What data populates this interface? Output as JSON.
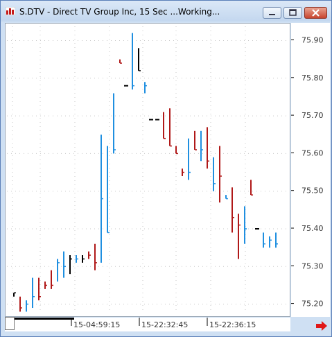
{
  "window": {
    "title": "S.DTV - Direct TV Group Inc, 15 Sec ...Working...",
    "icon": "chart-app-icon",
    "buttons": [
      "minimize-icon",
      "restore-icon",
      "close-icon"
    ]
  },
  "colors": {
    "up": "#1f8fe0",
    "down": "#b01818",
    "neutral": "#000000",
    "grid": "#c8c8c8"
  },
  "chart_data": {
    "type": "bar",
    "style": "ohlc",
    "ylim": [
      75.15,
      75.95
    ],
    "y_ticks": [
      "75.90",
      "75.80",
      "75.70",
      "75.60",
      "75.50",
      "75.40",
      "75.30",
      "75.20"
    ],
    "x_labels": [
      "15-04:59:15",
      "15-22:32:45",
      "15-22:36:15"
    ],
    "grid": "dotted",
    "bars": [
      {
        "dir": "neutral",
        "high": 75.23,
        "low": 75.22,
        "close": 75.23
      },
      {
        "dir": "down",
        "high": 75.22,
        "low": 75.18,
        "close": 75.19
      },
      {
        "dir": "up",
        "high": 75.21,
        "low": 75.18,
        "close": 75.2
      },
      {
        "dir": "up",
        "high": 75.27,
        "low": 75.19,
        "close": 75.22
      },
      {
        "dir": "down",
        "high": 75.27,
        "low": 75.21,
        "close": 75.22
      },
      {
        "dir": "down",
        "high": 75.26,
        "low": 75.24,
        "close": 75.25
      },
      {
        "dir": "down",
        "high": 75.29,
        "low": 75.24,
        "close": 75.25
      },
      {
        "dir": "up",
        "high": 75.32,
        "low": 75.26,
        "close": 75.31
      },
      {
        "dir": "up",
        "high": 75.34,
        "low": 75.27,
        "close": 75.3
      },
      {
        "dir": "neutral",
        "high": 75.33,
        "low": 75.28,
        "close": 75.32
      },
      {
        "dir": "up",
        "high": 75.33,
        "low": 75.31,
        "close": 75.32
      },
      {
        "dir": "neutral",
        "high": 75.33,
        "low": 75.31,
        "close": 75.32
      },
      {
        "dir": "down",
        "high": 75.34,
        "low": 75.32,
        "close": 75.33
      },
      {
        "dir": "down",
        "high": 75.36,
        "low": 75.29,
        "close": 75.31
      },
      {
        "dir": "up",
        "high": 75.65,
        "low": 75.31,
        "close": 75.48
      },
      {
        "dir": "up",
        "high": 75.62,
        "low": 75.39,
        "close": 75.39
      },
      {
        "dir": "up",
        "high": 75.76,
        "low": 75.6,
        "close": 75.61
      },
      {
        "dir": "down",
        "high": 75.85,
        "low": 75.84,
        "close": 75.84
      },
      {
        "dir": "neutral",
        "high": 75.78,
        "low": 75.78,
        "close": 75.78
      },
      {
        "dir": "up",
        "high": 75.92,
        "low": 75.77,
        "close": 75.78
      },
      {
        "dir": "neutral",
        "high": 75.88,
        "low": 75.82,
        "close": 75.82
      },
      {
        "dir": "up",
        "high": 75.79,
        "low": 75.76,
        "close": 75.78
      },
      {
        "dir": "neutral",
        "high": 75.69,
        "low": 75.69,
        "close": 75.69
      },
      {
        "dir": "neutral",
        "high": 75.69,
        "low": 75.69,
        "close": 75.69
      },
      {
        "dir": "down",
        "high": 75.71,
        "low": 75.64,
        "close": 75.64
      },
      {
        "dir": "down",
        "high": 75.72,
        "low": 75.62,
        "close": 75.62
      },
      {
        "dir": "down",
        "high": 75.62,
        "low": 75.6,
        "close": 75.6
      },
      {
        "dir": "down",
        "high": 75.56,
        "low": 75.54,
        "close": 75.55
      },
      {
        "dir": "up",
        "high": 75.64,
        "low": 75.53,
        "close": 75.55
      },
      {
        "dir": "down",
        "high": 75.66,
        "low": 75.61,
        "close": 75.61
      },
      {
        "dir": "up",
        "high": 75.66,
        "low": 75.58,
        "close": 75.61
      },
      {
        "dir": "down",
        "high": 75.67,
        "low": 75.56,
        "close": 75.58
      },
      {
        "dir": "up",
        "high": 75.59,
        "low": 75.5,
        "close": 75.52
      },
      {
        "dir": "down",
        "high": 75.62,
        "low": 75.47,
        "close": 75.54
      },
      {
        "dir": "up",
        "high": 75.49,
        "low": 75.48,
        "close": 75.48
      },
      {
        "dir": "down",
        "high": 75.51,
        "low": 75.39,
        "close": 75.43
      },
      {
        "dir": "down",
        "high": 75.44,
        "low": 75.32,
        "close": 75.41
      },
      {
        "dir": "up",
        "high": 75.46,
        "low": 75.36,
        "close": 75.4
      },
      {
        "dir": "down",
        "high": 75.53,
        "low": 75.49,
        "close": 75.49
      },
      {
        "dir": "neutral",
        "high": 75.4,
        "low": 75.4,
        "close": 75.4
      },
      {
        "dir": "up",
        "high": 75.39,
        "low": 75.35,
        "close": 75.36
      },
      {
        "dir": "up",
        "high": 75.38,
        "low": 75.35,
        "close": 75.37
      },
      {
        "dir": "up",
        "high": 75.39,
        "low": 75.35,
        "close": 75.36
      }
    ]
  }
}
